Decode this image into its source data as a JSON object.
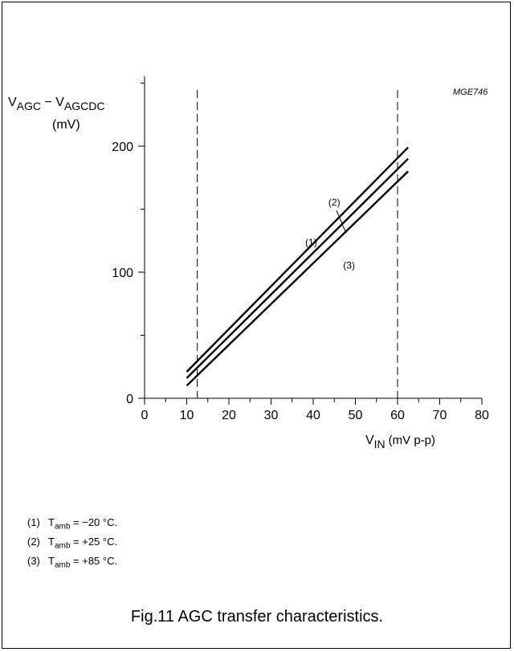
{
  "chart_data": {
    "type": "line",
    "code": "MGE746",
    "ylabel": {
      "main": "V",
      "sub1": "AGC",
      "minus": " − V",
      "sub2": "AGCDC",
      "unit": "(mV)"
    },
    "xlabel": {
      "main": "V",
      "sub": "IN",
      "unit": "(mV p-p)"
    },
    "xlim": [
      0,
      80
    ],
    "ylim": [
      0,
      200
    ],
    "x_ticks": [
      0,
      10,
      20,
      30,
      40,
      50,
      60,
      70,
      80
    ],
    "y_tick_labels": [
      0,
      100,
      200
    ],
    "x_minor_ticks": [
      5,
      15,
      25,
      35,
      45,
      55,
      65,
      75
    ],
    "y_minor_ticks": [
      50,
      150,
      250
    ],
    "vlines": [
      12.5,
      60
    ],
    "series": [
      {
        "name": "(1)",
        "x": [
          10,
          62.5
        ],
        "y": [
          21,
          199
        ]
      },
      {
        "name": "(2)",
        "x": [
          10,
          62.5
        ],
        "y": [
          16,
          190
        ]
      },
      {
        "name": "(3)",
        "x": [
          10,
          62.5
        ],
        "y": [
          10,
          180
        ]
      }
    ],
    "series_labels": [
      {
        "text": "(1)",
        "x": 39.5,
        "y": 121
      },
      {
        "text": "(2)",
        "x": 45,
        "y": 153
      },
      {
        "text": "(3)",
        "x": 48.5,
        "y": 103
      }
    ]
  },
  "legend": [
    {
      "num": "(1)",
      "t": "T",
      "sub": "amb",
      "rest": " = −20 °C."
    },
    {
      "num": "(2)",
      "t": "T",
      "sub": "amb",
      "rest": " = +25 °C."
    },
    {
      "num": "(3)",
      "t": "T",
      "sub": "amb",
      "rest": " = +85 °C."
    }
  ],
  "caption": "Fig.11  AGC transfer characteristics."
}
